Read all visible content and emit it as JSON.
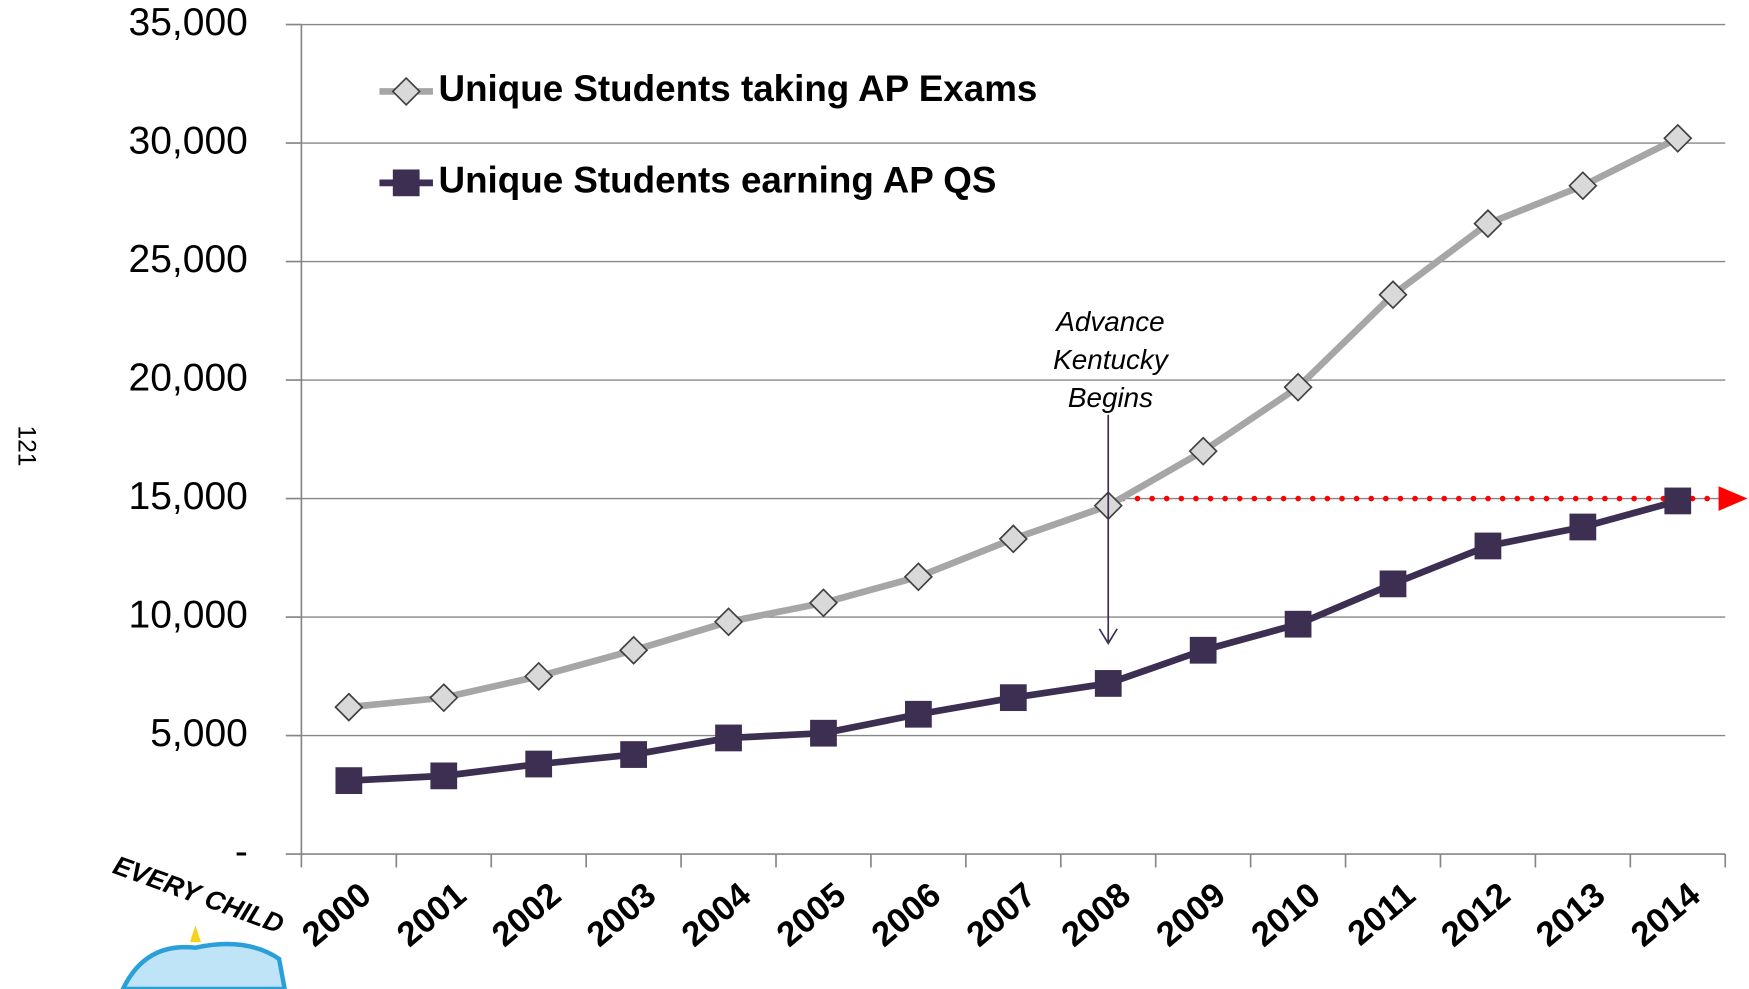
{
  "chart_data": {
    "type": "line",
    "categories": [
      "2000",
      "2001",
      "2002",
      "2003",
      "2004",
      "2005",
      "2006",
      "2007",
      "2008",
      "2009",
      "2010",
      "2011",
      "2012",
      "2013",
      "2014"
    ],
    "series": [
      {
        "name": "Unique Students taking AP Exams",
        "color": "#a6a6a6",
        "marker": "diamond",
        "values": [
          6200,
          6600,
          7500,
          8600,
          9800,
          10600,
          11700,
          13300,
          14700,
          17000,
          19700,
          23600,
          26600,
          28200,
          30200
        ]
      },
      {
        "name": "Unique Students earning AP QS",
        "color": "#3d2f52",
        "marker": "square",
        "values": [
          3100,
          3300,
          3800,
          4200,
          4900,
          5100,
          5900,
          6600,
          7200,
          8600,
          9700,
          11400,
          13000,
          13800,
          14900
        ]
      }
    ],
    "ylim": [
      0,
      35000
    ],
    "yticks": [
      {
        "value": 0,
        "label": "-"
      },
      {
        "value": 5000,
        "label": "5,000"
      },
      {
        "value": 10000,
        "label": "10,000"
      },
      {
        "value": 15000,
        "label": "15,000"
      },
      {
        "value": 20000,
        "label": "20,000"
      },
      {
        "value": 25000,
        "label": "25,000"
      },
      {
        "value": 30000,
        "label": "30,000"
      },
      {
        "value": 35000,
        "label": "35,000"
      }
    ],
    "grid": true,
    "legend": "top-left",
    "annotation": {
      "lines": [
        "Advance",
        "Kentucky",
        "Begins"
      ],
      "category": "2008"
    },
    "reference_line": {
      "value": 15000,
      "color": "#ff0000",
      "from": "2008"
    },
    "page_number": "121",
    "logo_text": "EVERY CHILD"
  }
}
